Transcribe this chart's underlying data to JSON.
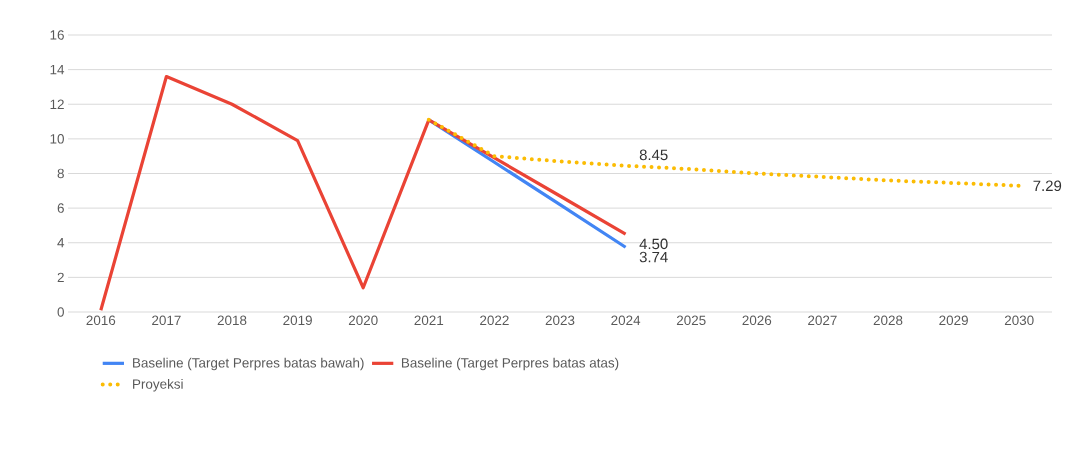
{
  "chart_data": {
    "type": "line",
    "categories": [
      "2016",
      "2017",
      "2018",
      "2019",
      "2020",
      "2021",
      "2022",
      "2023",
      "2024",
      "2025",
      "2026",
      "2027",
      "2028",
      "2029",
      "2030"
    ],
    "series": [
      {
        "name": "Baseline (Target Perpres batas bawah)",
        "color": "#4285f4",
        "line_style": "solid",
        "values": [
          null,
          null,
          null,
          null,
          null,
          11.1,
          8.65,
          6.2,
          3.74,
          null,
          null,
          null,
          null,
          null,
          null
        ],
        "value_labels": [
          null,
          null,
          null,
          null,
          null,
          null,
          null,
          null,
          "3.74",
          null,
          null,
          null,
          null,
          null,
          null
        ]
      },
      {
        "name": "Baseline (Target Perpres batas atas)",
        "color": "#ea4335",
        "line_style": "solid",
        "values": [
          0.1,
          13.6,
          12.0,
          9.9,
          1.4,
          11.1,
          8.9,
          6.7,
          4.5,
          null,
          null,
          null,
          null,
          null,
          null
        ],
        "value_labels": [
          null,
          null,
          null,
          null,
          null,
          null,
          null,
          null,
          "4.50",
          null,
          null,
          null,
          null,
          null,
          null
        ]
      },
      {
        "name": "Proyeksi",
        "color": "#fbbc04",
        "line_style": "dotted",
        "values": [
          null,
          null,
          null,
          null,
          null,
          11.1,
          9.0,
          8.7,
          8.45,
          8.25,
          8.0,
          7.8,
          7.6,
          7.45,
          7.29
        ],
        "value_labels": [
          null,
          null,
          null,
          null,
          null,
          null,
          null,
          null,
          "8.45",
          null,
          null,
          null,
          null,
          null,
          "7.29"
        ]
      }
    ],
    "ylim": [
      0,
      16
    ],
    "yticks": [
      0,
      2,
      4,
      6,
      8,
      10,
      12,
      14,
      16
    ],
    "grid": "y",
    "legend": "bottom"
  }
}
